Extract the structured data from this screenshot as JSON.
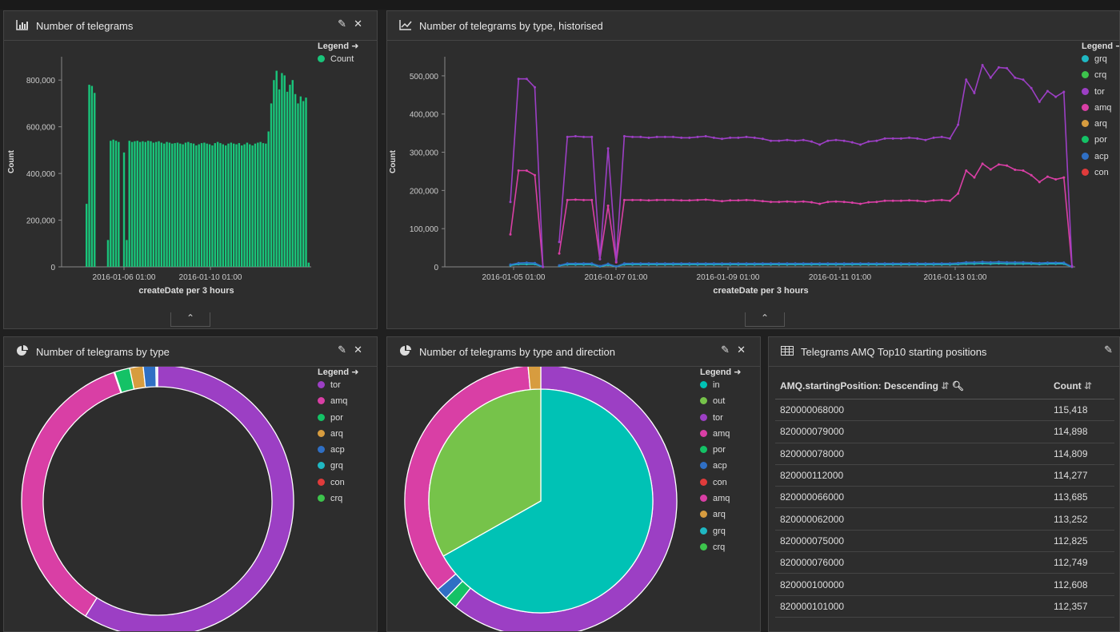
{
  "panels": {
    "bar": {
      "title": "Number of telegrams",
      "icon": "bar-chart-icon"
    },
    "line": {
      "title": "Number of telegrams by type, historised",
      "icon": "line-chart-icon"
    },
    "pie1": {
      "title": "Number of telegrams by type",
      "icon": "pie-chart-icon"
    },
    "pie2": {
      "title": "Number of telegrams by type and direction",
      "icon": "pie-chart-icon"
    },
    "table": {
      "title": "Telegrams AMQ Top10 starting positions",
      "icon": "table-icon"
    }
  },
  "legend_title": "Legend",
  "colors": {
    "tor": "#9c3fc4",
    "amq": "#d93fa5",
    "por": "#14c266",
    "arq": "#d79c3f",
    "acp": "#2f6fc4",
    "grq": "#1fb8c3",
    "con": "#e03b3b",
    "crq": "#3dc44c",
    "in": "#00c2b5",
    "out": "#76c34a",
    "count": "#19c47a"
  },
  "chart_data": [
    {
      "type": "bar",
      "title": "Number of telegrams",
      "xlabel": "createDate per 3 hours",
      "ylabel": "Count",
      "ylim": [
        0,
        900000
      ],
      "yticks": [
        "0",
        "200,000",
        "400,000",
        "600,000",
        "800,000"
      ],
      "xticks": [
        "2016-01-06 01:00",
        "2016-01-10 01:00"
      ],
      "series": [
        {
          "name": "Count"
        }
      ],
      "values": [
        270000,
        780000,
        775000,
        745000,
        0,
        0,
        0,
        0,
        115000,
        540000,
        545000,
        540000,
        535000,
        0,
        490000,
        115000,
        540000,
        535000,
        538000,
        540000,
        535000,
        538000,
        535000,
        540000,
        538000,
        532000,
        535000,
        538000,
        532000,
        528000,
        535000,
        532000,
        528000,
        530000,
        532000,
        528000,
        525000,
        532000,
        535000,
        530000,
        528000,
        520000,
        525000,
        530000,
        532000,
        528000,
        525000,
        520000,
        530000,
        535000,
        530000,
        525000,
        520000,
        528000,
        532000,
        528000,
        525000,
        530000,
        520000,
        525000,
        532000,
        525000,
        520000,
        528000,
        532000,
        535000,
        530000,
        528000,
        580000,
        700000,
        800000,
        840000,
        760000,
        830000,
        820000,
        750000,
        780000,
        800000,
        740000,
        700000,
        730000,
        710000,
        725000,
        18000
      ]
    },
    {
      "type": "line",
      "title": "Number of telegrams by type, historised",
      "xlabel": "createDate per 3 hours",
      "ylabel": "Count",
      "ylim": [
        0,
        550000
      ],
      "yticks": [
        "0",
        "100,000",
        "200,000",
        "300,000",
        "400,000",
        "500,000"
      ],
      "xticks": [
        "2016-01-05 01:00",
        "2016-01-07 01:00",
        "2016-01-09 01:00",
        "2016-01-11 01:00",
        "2016-01-13 01:00"
      ],
      "legend": [
        "grq",
        "crq",
        "tor",
        "amq",
        "arq",
        "por",
        "acp",
        "con"
      ],
      "series": [
        {
          "name": "tor",
          "values": [
            170000,
            492000,
            492000,
            470000,
            0,
            null,
            65000,
            340000,
            342000,
            340000,
            340000,
            20000,
            310000,
            15000,
            342000,
            340000,
            340000,
            338000,
            340000,
            340000,
            340000,
            338000,
            338000,
            340000,
            342000,
            338000,
            335000,
            338000,
            338000,
            340000,
            338000,
            335000,
            330000,
            330000,
            332000,
            330000,
            332000,
            328000,
            320000,
            330000,
            332000,
            330000,
            326000,
            320000,
            328000,
            330000,
            336000,
            336000,
            336000,
            338000,
            336000,
            332000,
            338000,
            340000,
            336000,
            372000,
            490000,
            455000,
            528000,
            495000,
            522000,
            520000,
            495000,
            490000,
            468000,
            432000,
            460000,
            445000,
            458000,
            2000
          ]
        },
        {
          "name": "amq",
          "values": [
            85000,
            252000,
            252000,
            240000,
            0,
            null,
            35000,
            175000,
            176000,
            175000,
            175000,
            20000,
            160000,
            12000,
            175000,
            175000,
            175000,
            174000,
            175000,
            175000,
            175000,
            174000,
            174000,
            175000,
            176000,
            174000,
            172000,
            174000,
            174000,
            175000,
            174000,
            172000,
            170000,
            170000,
            171000,
            170000,
            171000,
            169000,
            165000,
            170000,
            171000,
            170000,
            168000,
            165000,
            169000,
            170000,
            173000,
            173000,
            173000,
            174000,
            173000,
            171000,
            174000,
            175000,
            173000,
            192000,
            252000,
            234000,
            270000,
            255000,
            268000,
            265000,
            254000,
            252000,
            240000,
            222000,
            236000,
            229000,
            234000,
            1000
          ]
        },
        {
          "name": "acp",
          "values": [
            6000,
            10000,
            11000,
            10000,
            0,
            null,
            4000,
            9000,
            9000,
            9000,
            9000,
            2000,
            8000,
            1000,
            9000,
            9000,
            9000,
            9000,
            9000,
            9000,
            9000,
            9000,
            9000,
            9000,
            9000,
            9000,
            9000,
            9000,
            9000,
            9000,
            9000,
            9000,
            9000,
            9000,
            9000,
            9000,
            9000,
            9000,
            9000,
            9000,
            9000,
            9000,
            9000,
            9000,
            9000,
            9000,
            9000,
            9000,
            9000,
            9000,
            9000,
            9000,
            9000,
            9000,
            9000,
            10000,
            12000,
            12000,
            13000,
            12000,
            13000,
            12000,
            12000,
            12000,
            11000,
            10000,
            11000,
            11000,
            11000,
            0
          ]
        },
        {
          "name": "grq",
          "values": [
            4000,
            7000,
            7000,
            7000,
            0,
            null,
            3000,
            6000,
            6000,
            6000,
            6000,
            1000,
            5000,
            1000,
            6000,
            6000,
            6000,
            6000,
            6000,
            6000,
            6000,
            6000,
            6000,
            6000,
            6000,
            6000,
            6000,
            6000,
            6000,
            6000,
            6000,
            6000,
            6000,
            6000,
            6000,
            6000,
            6000,
            6000,
            6000,
            6000,
            6000,
            6000,
            6000,
            6000,
            6000,
            6000,
            6000,
            6000,
            6000,
            6000,
            6000,
            6000,
            6000,
            6000,
            6000,
            7000,
            8000,
            8000,
            9000,
            8000,
            9000,
            8000,
            8000,
            8000,
            8000,
            7000,
            8000,
            8000,
            8000,
            0
          ]
        }
      ]
    },
    {
      "type": "pie",
      "title": "Number of telegrams by type",
      "legend": [
        "tor",
        "amq",
        "por",
        "arq",
        "acp",
        "grq",
        "con",
        "crq"
      ],
      "values": [
        {
          "label": "tor",
          "value": 58.9
        },
        {
          "label": "amq",
          "value": 35.9
        },
        {
          "label": "por",
          "value": 1.8
        },
        {
          "label": "arq",
          "value": 1.6
        },
        {
          "label": "acp",
          "value": 1.5
        },
        {
          "label": "grq",
          "value": 0.15
        },
        {
          "label": "con",
          "value": 0.05
        },
        {
          "label": "crq",
          "value": 0.1
        }
      ]
    },
    {
      "type": "pie",
      "title": "Number of telegrams by type and direction",
      "legend": [
        "in",
        "out",
        "tor",
        "amq",
        "por",
        "acp",
        "con",
        "amq",
        "arq",
        "grq",
        "crq"
      ],
      "inner": [
        {
          "label": "in",
          "value": 66.8
        },
        {
          "label": "out",
          "value": 33.2
        }
      ],
      "outer": [
        {
          "label": "tor",
          "value": 60.8
        },
        {
          "label": "por",
          "value": 1.5
        },
        {
          "label": "acp",
          "value": 1.4
        },
        {
          "label": "amq",
          "value": 34.8
        },
        {
          "label": "arq",
          "value": 1.5
        }
      ]
    }
  ],
  "table": {
    "col1": "AMQ.startingPosition: Descending",
    "col2": "Count",
    "rows": [
      {
        "pos": "820000068000",
        "count": "115,418"
      },
      {
        "pos": "820000079000",
        "count": "114,898"
      },
      {
        "pos": "820000078000",
        "count": "114,809"
      },
      {
        "pos": "820000112000",
        "count": "114,277"
      },
      {
        "pos": "820000066000",
        "count": "113,685"
      },
      {
        "pos": "820000062000",
        "count": "113,252"
      },
      {
        "pos": "820000075000",
        "count": "112,825"
      },
      {
        "pos": "820000076000",
        "count": "112,749"
      },
      {
        "pos": "820000100000",
        "count": "112,608"
      },
      {
        "pos": "820000101000",
        "count": "112,357"
      }
    ]
  }
}
